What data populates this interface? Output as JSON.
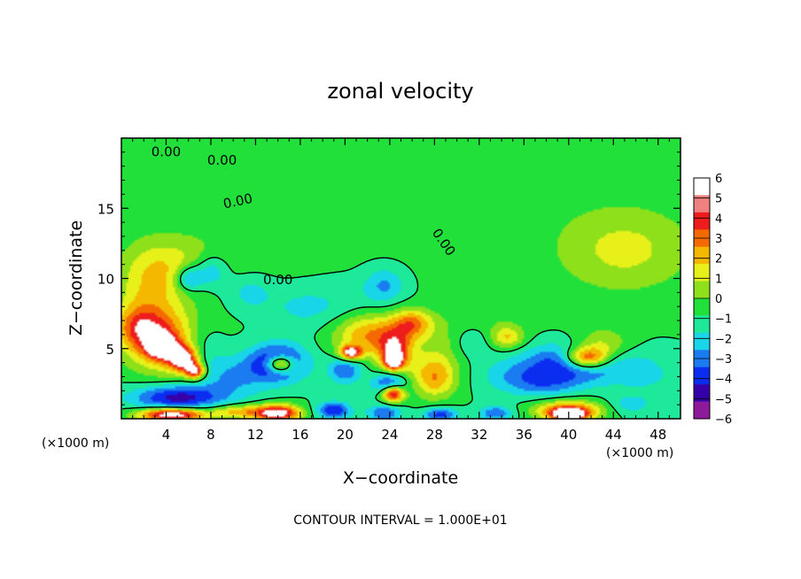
{
  "chart_data": {
    "type": "heatmap",
    "title": "zonal velocity",
    "xlabel": "X−coordinate",
    "ylabel": "Z−coordinate",
    "x_unit_left": "(×1000 m)",
    "x_unit_right": "(×1000 m)",
    "footer": "CONTOUR INTERVAL = 1.000E+01",
    "xlim": [
      0,
      50
    ],
    "ylim": [
      0,
      20
    ],
    "xticks": [
      4,
      8,
      12,
      16,
      20,
      24,
      28,
      32,
      36,
      40,
      44,
      48
    ],
    "xtick_labels": [
      "4",
      "8",
      "12",
      "16",
      "20",
      "24",
      "28",
      "32",
      "36",
      "40",
      "44",
      "48"
    ],
    "yticks": [
      5,
      10,
      15
    ],
    "ytick_labels": [
      "5",
      "10",
      "15"
    ],
    "colorbar": {
      "min": -6,
      "max": 6,
      "ticks": [
        6,
        5,
        4,
        3,
        2,
        1,
        0,
        -1,
        -2,
        -3,
        -4,
        -5,
        -6
      ],
      "tick_labels": [
        "6",
        "5",
        "4",
        "3",
        "2",
        "1",
        "0",
        "−1",
        "−2",
        "−3",
        "−4",
        "−5",
        "−6"
      ],
      "colors": [
        "#8c1a9a",
        "#3500a8",
        "#0b2df0",
        "#1a7cf0",
        "#18d6e8",
        "#1ee89a",
        "#22e03a",
        "#8ee01a",
        "#e8f01a",
        "#f5b800",
        "#f56a00",
        "#ee1c1c",
        "#f08080",
        "#ffffff"
      ]
    },
    "contour_labels": [
      "0.00",
      "0.00",
      "0.00",
      "0.00",
      "0.00"
    ],
    "features": [
      {
        "x": 25,
        "z": 16,
        "sx": 30,
        "sz": 6,
        "value": 0.4
      },
      {
        "x": 45,
        "z": 12,
        "sx": 6,
        "sz": 3,
        "value": 2.2
      },
      {
        "x": 12,
        "z": 13,
        "sx": 6,
        "sz": 3,
        "value": 0.3
      },
      {
        "x": 2.5,
        "z": 9,
        "sx": 3,
        "sz": 3,
        "value": 2.5
      },
      {
        "x": 5,
        "z": 11,
        "sx": 4,
        "sz": 2,
        "value": 1.8
      },
      {
        "x": 6,
        "z": 10,
        "sx": 1.2,
        "sz": 0.9,
        "value": -3.5
      },
      {
        "x": 8,
        "z": 10.5,
        "sx": 1.5,
        "sz": 1.2,
        "value": -2.5
      },
      {
        "x": 11.5,
        "z": 9,
        "sx": 2,
        "sz": 1.2,
        "value": -1.5
      },
      {
        "x": 16,
        "z": 8,
        "sx": 3,
        "sz": 1.5,
        "value": -1.2
      },
      {
        "x": 23.5,
        "z": 9.5,
        "sx": 1.8,
        "sz": 1.3,
        "value": -2.2
      },
      {
        "x": 20,
        "z": 8,
        "sx": 3,
        "sz": 2,
        "value": -0.8
      },
      {
        "x": 33,
        "z": 7.5,
        "sx": 4,
        "sz": 1.5,
        "value": 0.8
      },
      {
        "x": 4,
        "z": 5.5,
        "sx": 3.5,
        "sz": 2.2,
        "value": 4.5
      },
      {
        "x": 5.5,
        "z": 4.3,
        "sx": 1.3,
        "sz": 0.9,
        "value": 6.5
      },
      {
        "x": 3.5,
        "z": 5.2,
        "sx": 1.2,
        "sz": 0.8,
        "value": 6.5
      },
      {
        "x": 6.6,
        "z": 3.4,
        "sx": 0.9,
        "sz": 0.6,
        "value": 6.2
      },
      {
        "x": 1.5,
        "z": 6.5,
        "sx": 2,
        "sz": 1.5,
        "value": 3
      },
      {
        "x": 7,
        "z": 5,
        "sx": 2,
        "sz": 2,
        "value": -2
      },
      {
        "x": 14,
        "z": 4,
        "sx": 2.5,
        "sz": 1.3,
        "value": -5
      },
      {
        "x": 14.2,
        "z": 3.9,
        "sx": 1.2,
        "sz": 0.6,
        "value": 7
      },
      {
        "x": 10,
        "z": 3,
        "sx": 3,
        "sz": 1.5,
        "value": -2
      },
      {
        "x": 22,
        "z": 6,
        "sx": 3,
        "sz": 1.5,
        "value": 4
      },
      {
        "x": 20.5,
        "z": 4.7,
        "sx": 1,
        "sz": 0.5,
        "value": 6.5
      },
      {
        "x": 24.5,
        "z": 4.8,
        "sx": 1.6,
        "sz": 1.5,
        "value": 5
      },
      {
        "x": 24.3,
        "z": 4.2,
        "sx": 0.7,
        "sz": 0.6,
        "value": 7
      },
      {
        "x": 26,
        "z": 6.8,
        "sx": 1.8,
        "sz": 1,
        "value": 4
      },
      {
        "x": 28,
        "z": 3,
        "sx": 2,
        "sz": 1.5,
        "value": 4
      },
      {
        "x": 29,
        "z": 5.5,
        "sx": 2.5,
        "sz": 1.5,
        "value": 1.5
      },
      {
        "x": 20,
        "z": 3.5,
        "sx": 1.5,
        "sz": 1,
        "value": -3
      },
      {
        "x": 24,
        "z": 2.5,
        "sx": 1.5,
        "sz": 0.8,
        "value": -4
      },
      {
        "x": 24.3,
        "z": 1.8,
        "sx": 1,
        "sz": 0.6,
        "value": 7
      },
      {
        "x": 34.5,
        "z": 5.8,
        "sx": 1.5,
        "sz": 0.8,
        "value": 3
      },
      {
        "x": 35,
        "z": 3,
        "sx": 3,
        "sz": 1.2,
        "value": -1.5
      },
      {
        "x": 31,
        "z": 5.5,
        "sx": 2,
        "sz": 1.2,
        "value": -1.5
      },
      {
        "x": 41,
        "z": 4,
        "sx": 4.5,
        "sz": 1.3,
        "value": -5
      },
      {
        "x": 41.5,
        "z": 4.3,
        "sx": 2,
        "sz": 0.8,
        "value": 7
      },
      {
        "x": 43,
        "z": 5,
        "sx": 2.5,
        "sz": 1.3,
        "value": 3
      },
      {
        "x": 38,
        "z": 2.5,
        "sx": 3,
        "sz": 1,
        "value": -2
      },
      {
        "x": 47,
        "z": 3,
        "sx": 3,
        "sz": 1.3,
        "value": -1
      },
      {
        "x": 5,
        "z": 1.5,
        "sx": 4,
        "sz": 0.9,
        "value": -4.5
      },
      {
        "x": 4.5,
        "z": 0.3,
        "sx": 3,
        "sz": 0.5,
        "value": 7.5
      },
      {
        "x": 10.5,
        "z": 0.5,
        "sx": 2.5,
        "sz": 0.5,
        "value": 3.5
      },
      {
        "x": 14,
        "z": 0.4,
        "sx": 2,
        "sz": 0.6,
        "value": 7
      },
      {
        "x": 19,
        "z": 0.6,
        "sx": 1.5,
        "sz": 0.6,
        "value": -4
      },
      {
        "x": 23.5,
        "z": 0.4,
        "sx": 1.5,
        "sz": 0.6,
        "value": -3
      },
      {
        "x": 28.5,
        "z": 0.3,
        "sx": 1.5,
        "sz": 0.5,
        "value": -3.5
      },
      {
        "x": 33.5,
        "z": 0.4,
        "sx": 1.5,
        "sz": 0.5,
        "value": -3
      },
      {
        "x": 40,
        "z": 0.6,
        "sx": 3,
        "sz": 0.7,
        "value": 5
      },
      {
        "x": 40,
        "z": 0.3,
        "sx": 1.5,
        "sz": 0.4,
        "value": 7
      },
      {
        "x": 45.5,
        "z": 1,
        "sx": 2,
        "sz": 0.7,
        "value": -1.5
      }
    ]
  }
}
